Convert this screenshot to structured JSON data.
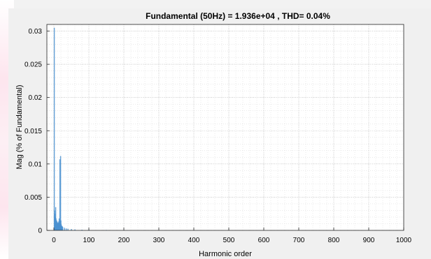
{
  "chart_data": {
    "type": "bar",
    "title": "Fundamental (50Hz) = 1.936e+04 , THD= 0.04%",
    "xlabel": "Harmonic order",
    "ylabel": "Mag (% of Fundamental)",
    "xlim": [
      -20,
      1000
    ],
    "ylim": [
      0,
      0.031
    ],
    "xticks": [
      0,
      100,
      200,
      300,
      400,
      500,
      600,
      700,
      800,
      900,
      1000
    ],
    "yticks": [
      0,
      0.005,
      0.01,
      0.015,
      0.02,
      0.025,
      0.03
    ],
    "ytick_labels": [
      "0",
      "0.005",
      "0.01",
      "0.015",
      "0.02",
      "0.025",
      "0.03"
    ],
    "grid": true,
    "minor_grid": true,
    "series": [
      {
        "color": "#4a90d0",
        "x": [
          1,
          2,
          3,
          4,
          5,
          6,
          7,
          8,
          9,
          10,
          11,
          12,
          13,
          14,
          15,
          16,
          17,
          18,
          19,
          20,
          21,
          22,
          23,
          24,
          25,
          30,
          35,
          40,
          50,
          60,
          80,
          100,
          150,
          200
        ],
        "values": [
          0.0305,
          0.003,
          0.0025,
          0.002,
          0.0035,
          0.0018,
          0.0012,
          0.0015,
          0.0013,
          0.0012,
          0.0011,
          0.001,
          0.0012,
          0.0014,
          0.0018,
          0.0011,
          0.0107,
          0.0015,
          0.0112,
          0.0015,
          0.0009,
          0.0007,
          0.0006,
          0.0006,
          0.0005,
          0.0004,
          0.0003,
          0.00025,
          0.0002,
          0.00015,
          0.0001,
          0.0001,
          6e-05,
          4e-05
        ]
      }
    ]
  }
}
